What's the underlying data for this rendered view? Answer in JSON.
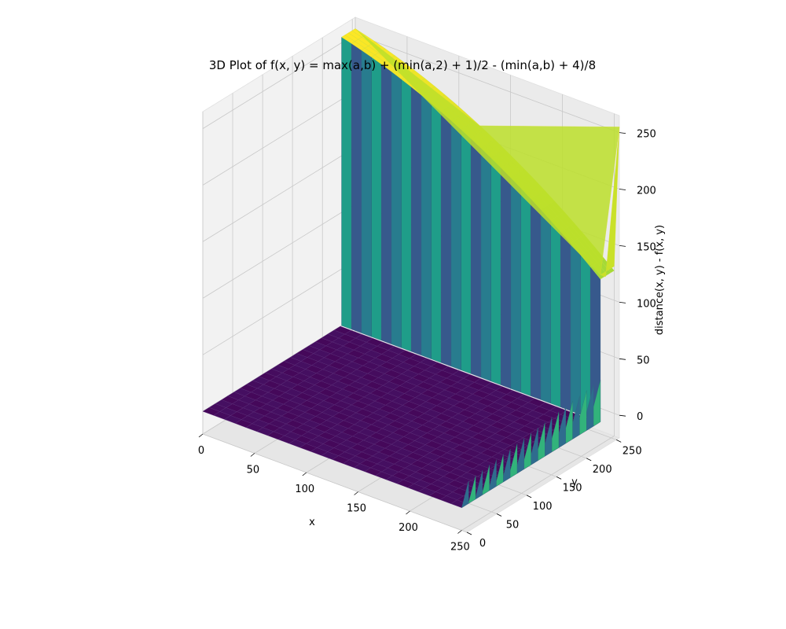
{
  "chart_data": {
    "type": "surface3d",
    "title": "3D Plot of f(x, y) = max(a,b) + (min(a,2) + 1)/2 - (min(a,b) + 4)/8",
    "xlabel": "x",
    "ylabel": "y",
    "zlabel": "distance(x, y) - f(x, y)",
    "xlim": [
      0,
      255
    ],
    "ylim": [
      0,
      255
    ],
    "zlim": [
      -20,
      265
    ],
    "xticks": [
      0,
      50,
      100,
      150,
      200,
      250
    ],
    "yticks": [
      0,
      50,
      100,
      150,
      200,
      250
    ],
    "zticks": [
      0,
      50,
      100,
      150,
      200,
      250
    ],
    "colormap": "viridis",
    "colormap_stops": [
      "#440154",
      "#482878",
      "#3e4989",
      "#31688e",
      "#26828e",
      "#1f9e89",
      "#35b779",
      "#6ece58",
      "#b5de2b",
      "#fde725"
    ],
    "grid": true,
    "surface_samples": [
      {
        "x": 0,
        "y": 0,
        "z": 0
      },
      {
        "x": 250,
        "y": 0,
        "z": 0
      },
      {
        "x": 0,
        "y": 230,
        "z": 0
      },
      {
        "x": 250,
        "y": 230,
        "z": 0
      },
      {
        "x": 0,
        "y": 255,
        "z": 255
      },
      {
        "x": 250,
        "y": 255,
        "z": 130
      },
      {
        "x": 255,
        "y": 255,
        "z": 255
      },
      {
        "x": 255,
        "y": 0,
        "z": 0
      }
    ]
  }
}
